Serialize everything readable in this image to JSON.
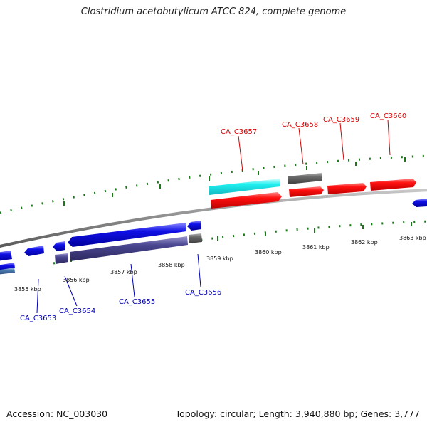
{
  "title": "Clostridium acetobutylicum ATCC 824, complete genome",
  "footer": {
    "accession": "Accession: NC_003030",
    "summary": "Topology: circular; Length: 3,940,880 bp; Genes: 3,777"
  },
  "colors": {
    "backbone": "#8a8a8a",
    "tick": "#1a7a1a",
    "gene_red": "#ff1010",
    "gene_blue": "#1010e6",
    "gene_cyan": "#20f0f0",
    "gene_gray": "#6a6a6a",
    "gene_slate": "#4a4690",
    "label_red": "#d40000",
    "label_blue": "#0000b4"
  },
  "scale_labels": [
    "3855 kbp",
    "3856 kbp",
    "3857 kbp",
    "3858 kbp",
    "3859 kbp",
    "3860 kbp",
    "3861 kbp",
    "3862 kbp",
    "3863 kbp"
  ],
  "gene_labels_top": [
    "CA_C3657",
    "CA_C3658",
    "CA_C3659",
    "CA_C3660"
  ],
  "gene_labels_bottom": [
    "CA_C3653",
    "CA_C3654",
    "CA_C3655",
    "CA_C3656"
  ]
}
